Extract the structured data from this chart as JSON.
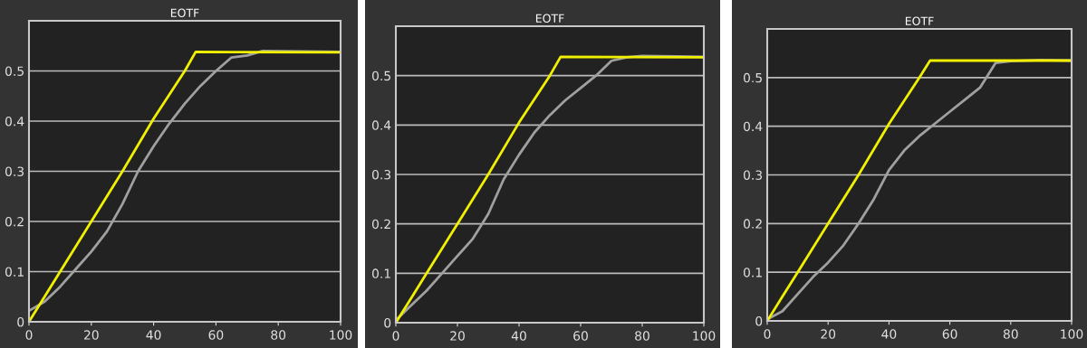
{
  "chart_data": [
    {
      "type": "line",
      "title": "EOTF",
      "xlim": [
        0,
        100
      ],
      "xticks": [
        0,
        20,
        40,
        60,
        80,
        100
      ],
      "ylim": [
        0,
        0.6
      ],
      "yticks": [
        0,
        0.1,
        0.2,
        0.3,
        0.4,
        0.5
      ],
      "grid": "y",
      "series": [
        {
          "color": "#a0a0a0",
          "x": [
            0,
            5,
            10,
            15,
            20,
            25,
            30,
            35,
            40,
            45,
            50,
            55,
            60,
            65,
            70,
            75,
            100
          ],
          "values": [
            0.022,
            0.04,
            0.07,
            0.105,
            0.14,
            0.18,
            0.235,
            0.3,
            0.35,
            0.395,
            0.435,
            0.47,
            0.5,
            0.527,
            0.531,
            0.54,
            0.538
          ]
        },
        {
          "color": "#f0f000",
          "x": [
            0,
            5,
            10,
            20,
            30,
            40,
            50,
            53.5,
            100
          ],
          "values": [
            0,
            0.05,
            0.1,
            0.2,
            0.3,
            0.405,
            0.5,
            0.538,
            0.537
          ]
        }
      ]
    },
    {
      "type": "line",
      "title": "EOTF",
      "xlim": [
        0,
        100
      ],
      "xticks": [
        0,
        20,
        40,
        60,
        80,
        100
      ],
      "ylim": [
        0,
        0.6
      ],
      "yticks": [
        0,
        0.1,
        0.2,
        0.3,
        0.4,
        0.5
      ],
      "grid": "y",
      "series": [
        {
          "color": "#a0a0a0",
          "x": [
            0,
            5,
            10,
            15,
            20,
            25,
            30,
            35,
            40,
            45,
            50,
            55,
            60,
            65,
            70,
            75,
            80,
            100
          ],
          "values": [
            0.005,
            0.035,
            0.065,
            0.1,
            0.135,
            0.17,
            0.22,
            0.29,
            0.34,
            0.385,
            0.42,
            0.45,
            0.475,
            0.5,
            0.53,
            0.537,
            0.54,
            0.538
          ]
        },
        {
          "color": "#f0f000",
          "x": [
            0,
            5,
            10,
            20,
            30,
            40,
            50,
            53.5,
            100
          ],
          "values": [
            0,
            0.05,
            0.1,
            0.2,
            0.3,
            0.405,
            0.5,
            0.538,
            0.537
          ]
        }
      ]
    },
    {
      "type": "line",
      "title": "EOTF",
      "xlim": [
        0,
        100
      ],
      "xticks": [
        0,
        20,
        40,
        60,
        80,
        100
      ],
      "ylim": [
        0,
        0.6
      ],
      "yticks": [
        0,
        0.1,
        0.2,
        0.3,
        0.4,
        0.5
      ],
      "grid": "y",
      "series": [
        {
          "color": "#a0a0a0",
          "x": [
            0,
            5,
            10,
            15,
            20,
            25,
            30,
            35,
            40,
            45,
            50,
            55,
            60,
            65,
            70,
            75,
            80,
            90,
            100
          ],
          "values": [
            0.003,
            0.02,
            0.055,
            0.09,
            0.12,
            0.155,
            0.2,
            0.25,
            0.31,
            0.35,
            0.38,
            0.405,
            0.43,
            0.455,
            0.48,
            0.53,
            0.534,
            0.536,
            0.535
          ]
        },
        {
          "color": "#f0f000",
          "x": [
            0,
            5,
            10,
            20,
            30,
            40,
            50,
            53.5,
            100
          ],
          "values": [
            0,
            0.05,
            0.1,
            0.2,
            0.3,
            0.405,
            0.5,
            0.535,
            0.535
          ]
        }
      ]
    }
  ]
}
